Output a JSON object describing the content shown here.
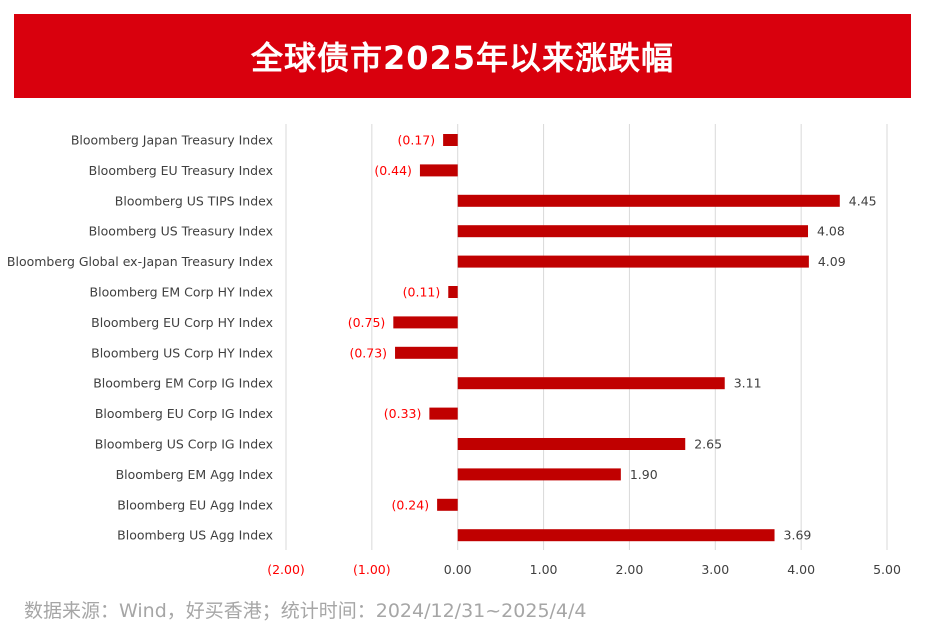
{
  "title": "全球债市2025年以来涨跌幅",
  "source": "数据来源：Wind，好买香港；统计时间：2024/12/31~2025/4/4",
  "colors": {
    "banner": "#d9000d",
    "bar": "#c00000",
    "negative_label": "#ff0000",
    "positive_label": "#404040",
    "grid": "#d9d9d9",
    "category_label": "#404040",
    "source_text": "#a6a6a6"
  },
  "chart_data": {
    "type": "bar",
    "orientation": "horizontal",
    "categories": [
      "Bloomberg Japan Treasury Index",
      "Bloomberg EU Treasury Index",
      "Bloomberg US TIPS Index",
      "Bloomberg US Treasury Index",
      "Bloomberg Global ex-Japan Treasury Index",
      "Bloomberg EM Corp HY Index",
      "Bloomberg EU Corp HY Index",
      "Bloomberg US Corp HY Index",
      "Bloomberg EM Corp IG Index",
      "Bloomberg EU Corp IG Index",
      "Bloomberg US Corp IG Index",
      "Bloomberg EM Agg Index",
      "Bloomberg EU Agg Index",
      "Bloomberg US Agg Index"
    ],
    "values": [
      -0.17,
      -0.44,
      4.45,
      4.08,
      4.09,
      -0.11,
      -0.75,
      -0.73,
      3.11,
      -0.33,
      2.65,
      1.9,
      -0.24,
      3.69
    ],
    "value_labels": [
      "(0.17)",
      "(0.44)",
      "4.45",
      "4.08",
      "4.09",
      "(0.11)",
      "(0.75)",
      "(0.73)",
      "3.11",
      "(0.33)",
      "2.65",
      "1.90",
      "(0.24)",
      "3.69"
    ],
    "xlim": [
      -2,
      5
    ],
    "xticks": [
      -2,
      -1,
      0,
      1,
      2,
      3,
      4,
      5
    ],
    "xtick_labels": [
      "(2.00)",
      "(1.00)",
      "0.00",
      "1.00",
      "2.00",
      "3.00",
      "4.00",
      "5.00"
    ],
    "grid": true,
    "legend": "none"
  }
}
